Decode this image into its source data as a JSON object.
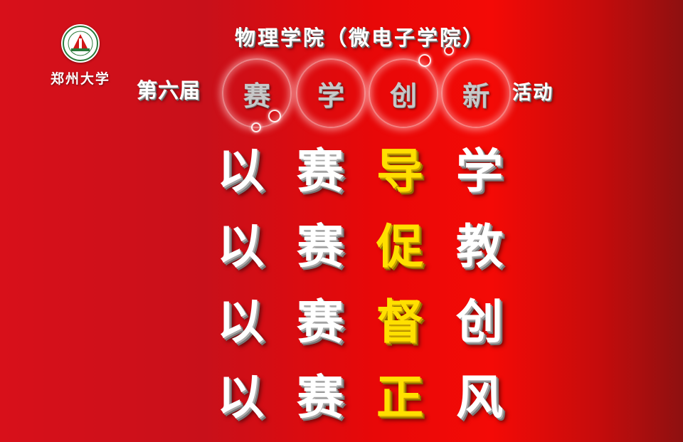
{
  "header": {
    "logo": {
      "icon": "zhengzhou-university-emblem-icon"
    },
    "university": "郑州大学",
    "school": "物理学院（微电子学院）",
    "edition": "第六届",
    "circles": [
      "赛",
      "学",
      "创",
      "新"
    ],
    "activity": "活动"
  },
  "slogans": [
    {
      "chars": [
        "以",
        "赛",
        "导",
        "学"
      ]
    },
    {
      "chars": [
        "以",
        "赛",
        "促",
        "教"
      ]
    },
    {
      "chars": [
        "以",
        "赛",
        "督",
        "创"
      ]
    },
    {
      "chars": [
        "以",
        "赛",
        "正",
        "风"
      ]
    }
  ],
  "colors": {
    "highlight": "#ffe000",
    "text": "#ffffff",
    "background_left": "#d8101a",
    "background_center": "#f40a06",
    "background_right": "#8e1010"
  }
}
